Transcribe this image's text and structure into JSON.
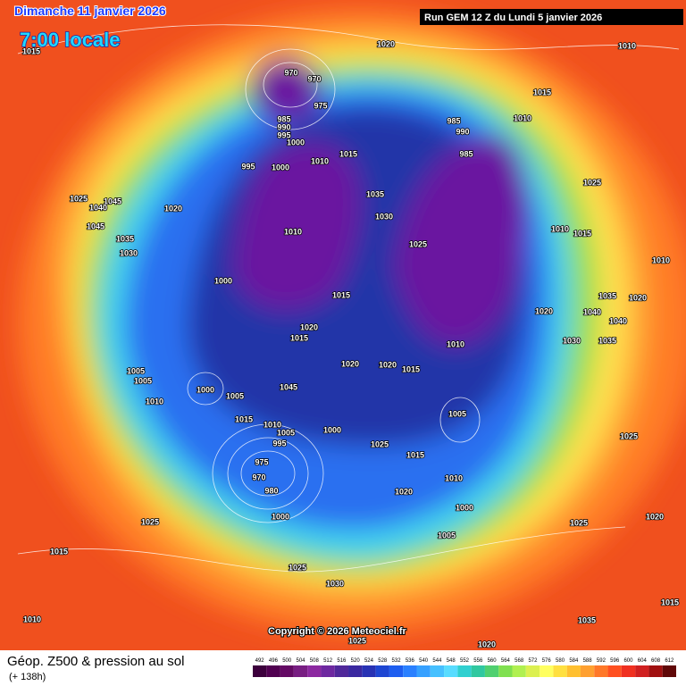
{
  "header": {
    "date": "Dimanche 11 janvier 2026",
    "time": "7:00 locale",
    "run": "Run GEM 12 Z du Lundi 5 janvier 2026"
  },
  "map": {
    "isobar_labels": [
      1015,
      1020,
      1010,
      970,
      970,
      975,
      985,
      990,
      995,
      1000,
      1015,
      1010,
      995,
      1000,
      1025,
      1045,
      1040,
      1020,
      1045,
      1035,
      1030,
      1035,
      1030,
      1010,
      1025,
      985,
      990,
      1010,
      985,
      1015,
      1025,
      1010,
      1015,
      1000,
      1015,
      1010,
      1035,
      1020,
      1040,
      1020,
      1040,
      1020,
      1015,
      1010,
      1030,
      1035,
      1020,
      1020,
      1015,
      1005,
      1005,
      1000,
      1005,
      1010,
      1045,
      1015,
      1010,
      1005,
      1000,
      995,
      1005,
      1025,
      1015,
      975,
      970,
      980,
      1010,
      1020,
      1000,
      1000,
      1025,
      1025,
      1020,
      1015,
      1005,
      1025,
      1030,
      1010,
      1035,
      1015,
      1025,
      1020,
      1025
    ]
  },
  "footer": {
    "copyright": "Copyright © 2026 Meteociel.fr",
    "product": "Géop. Z500 & pression au sol",
    "lead": "(+ 138h)"
  },
  "legend": {
    "levels": [
      492,
      496,
      500,
      504,
      508,
      512,
      516,
      520,
      524,
      528,
      532,
      536,
      540,
      544,
      548,
      552,
      556,
      560,
      564,
      568,
      572,
      576,
      580,
      584,
      588,
      592,
      596,
      600,
      604,
      608,
      612
    ],
    "colors": [
      "#3c003c",
      "#500050",
      "#640a64",
      "#781e82",
      "#8c28a0",
      "#6e28a0",
      "#50289a",
      "#3a28a0",
      "#2832b4",
      "#1e46d2",
      "#1e5ef0",
      "#2a80ff",
      "#36a0ff",
      "#46c0ff",
      "#58dcff",
      "#30d0d0",
      "#30c8a0",
      "#50d070",
      "#80e050",
      "#b0f050",
      "#dcf050",
      "#ffff60",
      "#ffe040",
      "#ffc030",
      "#ffa030",
      "#ff7828",
      "#ff5020",
      "#f03020",
      "#d02020",
      "#a01010",
      "#600808"
    ]
  }
}
